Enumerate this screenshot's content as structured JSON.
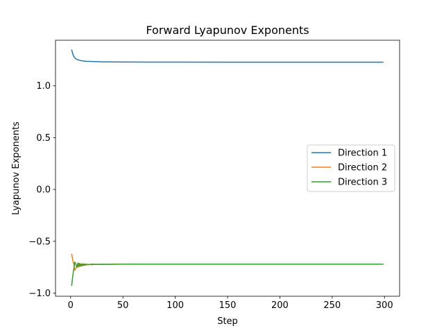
{
  "chart_data": {
    "type": "line",
    "title": "Forward Lyapunov Exponents",
    "xlabel": "Step",
    "ylabel": "Lyapunov Exponents",
    "xlim": [
      -14.45,
      314.45
    ],
    "ylim": [
      -1.03,
      1.44
    ],
    "xticks": [
      0,
      50,
      100,
      150,
      200,
      250,
      300
    ],
    "xtick_labels": [
      "0",
      "50",
      "100",
      "150",
      "200",
      "250",
      "300"
    ],
    "yticks": [
      -1.0,
      -0.5,
      0.0,
      0.5,
      1.0
    ],
    "ytick_labels": [
      "−1.0",
      "−0.5",
      "0.0",
      "0.5",
      "1.0"
    ],
    "grid": false,
    "legend_position": "center-right",
    "series": [
      {
        "name": "Direction 1",
        "color": "#1f77b4",
        "x": [
          1,
          2,
          3,
          4,
          5,
          6,
          8,
          10,
          12,
          15,
          20,
          25,
          30,
          40,
          50,
          75,
          100,
          150,
          200,
          250,
          299
        ],
        "y": [
          1.35,
          1.31,
          1.285,
          1.27,
          1.26,
          1.255,
          1.248,
          1.243,
          1.24,
          1.237,
          1.235,
          1.233,
          1.232,
          1.231,
          1.23,
          1.229,
          1.229,
          1.228,
          1.228,
          1.228,
          1.228
        ]
      },
      {
        "name": "Direction 2",
        "color": "#ff7f0e",
        "x": [
          1,
          2,
          3,
          4,
          5,
          6,
          7,
          8,
          9,
          10,
          11,
          12,
          13,
          14,
          15,
          17,
          20,
          25,
          30,
          40,
          50,
          100,
          150,
          200,
          250,
          299
        ],
        "y": [
          -0.62,
          -0.68,
          -0.72,
          -0.78,
          -0.76,
          -0.74,
          -0.75,
          -0.71,
          -0.74,
          -0.72,
          -0.735,
          -0.715,
          -0.73,
          -0.72,
          -0.728,
          -0.722,
          -0.726,
          -0.721,
          -0.723,
          -0.72,
          -0.72,
          -0.72,
          -0.72,
          -0.72,
          -0.72,
          -0.72
        ]
      },
      {
        "name": "Direction 3",
        "color": "#2ca02c",
        "x": [
          1,
          2,
          3,
          4,
          5,
          6,
          7,
          8,
          9,
          10,
          11,
          12,
          13,
          14,
          15,
          17,
          20,
          25,
          30,
          40,
          50,
          100,
          150,
          200,
          250,
          299
        ],
        "y": [
          -0.93,
          -0.84,
          -0.77,
          -0.7,
          -0.72,
          -0.75,
          -0.71,
          -0.745,
          -0.715,
          -0.74,
          -0.718,
          -0.735,
          -0.72,
          -0.73,
          -0.72,
          -0.726,
          -0.72,
          -0.723,
          -0.721,
          -0.722,
          -0.72,
          -0.72,
          -0.72,
          -0.72,
          -0.72,
          -0.72
        ]
      }
    ]
  }
}
